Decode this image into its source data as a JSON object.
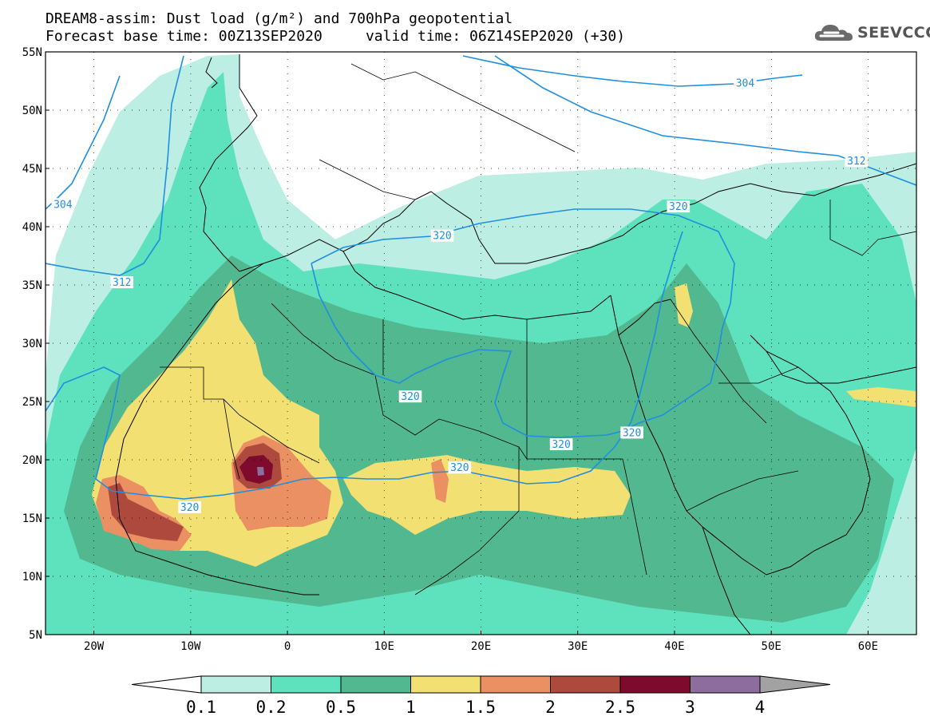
{
  "header": {
    "title_line_1": "DREAM8-assim: Dust load (g/m²) and 700hPa geopotential",
    "title_line_2": "Forecast base time: 00Z13SEP2020     valid time: 06Z14SEP2020 (+30)"
  },
  "logo": {
    "text": "SEEVCCC",
    "icon": "cloud-icon"
  },
  "map": {
    "lon_range": [
      -25,
      65
    ],
    "lat_range": [
      5,
      55
    ],
    "lon_ticks": [
      {
        "value": -20,
        "label": "20W"
      },
      {
        "value": -10,
        "label": "10W"
      },
      {
        "value": 0,
        "label": "0"
      },
      {
        "value": 10,
        "label": "10E"
      },
      {
        "value": 20,
        "label": "20E"
      },
      {
        "value": 30,
        "label": "30E"
      },
      {
        "value": 40,
        "label": "40E"
      },
      {
        "value": 50,
        "label": "50E"
      },
      {
        "value": 60,
        "label": "60E"
      }
    ],
    "lat_ticks": [
      {
        "value": 55,
        "label": "55N"
      },
      {
        "value": 50,
        "label": "50N"
      },
      {
        "value": 45,
        "label": "45N"
      },
      {
        "value": 40,
        "label": "40N"
      },
      {
        "value": 35,
        "label": "35N"
      },
      {
        "value": 30,
        "label": "30N"
      },
      {
        "value": 25,
        "label": "25N"
      },
      {
        "value": 20,
        "label": "20N"
      },
      {
        "value": 15,
        "label": "15N"
      },
      {
        "value": 10,
        "label": "10N"
      },
      {
        "value": 5,
        "label": "5N"
      }
    ],
    "grid": "dotted",
    "contour_labels": [
      {
        "text": "304",
        "lon": -23.2,
        "lat": 41.9
      },
      {
        "text": "312",
        "lon": -17.1,
        "lat": 35.2
      },
      {
        "text": "304",
        "lon": 47.3,
        "lat": 52.3
      },
      {
        "text": "312",
        "lon": 58.8,
        "lat": 45.6
      },
      {
        "text": "320",
        "lon": 16.0,
        "lat": 39.2
      },
      {
        "text": "320",
        "lon": 40.4,
        "lat": 41.7
      },
      {
        "text": "320",
        "lon": 12.7,
        "lat": 25.4
      },
      {
        "text": "320",
        "lon": 28.3,
        "lat": 21.3
      },
      {
        "text": "320",
        "lon": 35.6,
        "lat": 22.3
      },
      {
        "text": "320",
        "lon": 17.8,
        "lat": 19.3
      },
      {
        "text": "320",
        "lon": -10.1,
        "lat": 15.9
      }
    ]
  },
  "colorbar": {
    "labels": [
      "0.1",
      "0.2",
      "0.5",
      "1",
      "1.5",
      "2",
      "2.5",
      "3",
      "4"
    ],
    "colors": [
      "#ffffff",
      "#bdeee4",
      "#5ee2bd",
      "#52b88f",
      "#f3e073",
      "#ea9062",
      "#ad4a3d",
      "#7e0a2d",
      "#8d6c9e",
      "#a2a2a2"
    ]
  },
  "legend_colors": {
    "contour": "#1f8fe0"
  }
}
